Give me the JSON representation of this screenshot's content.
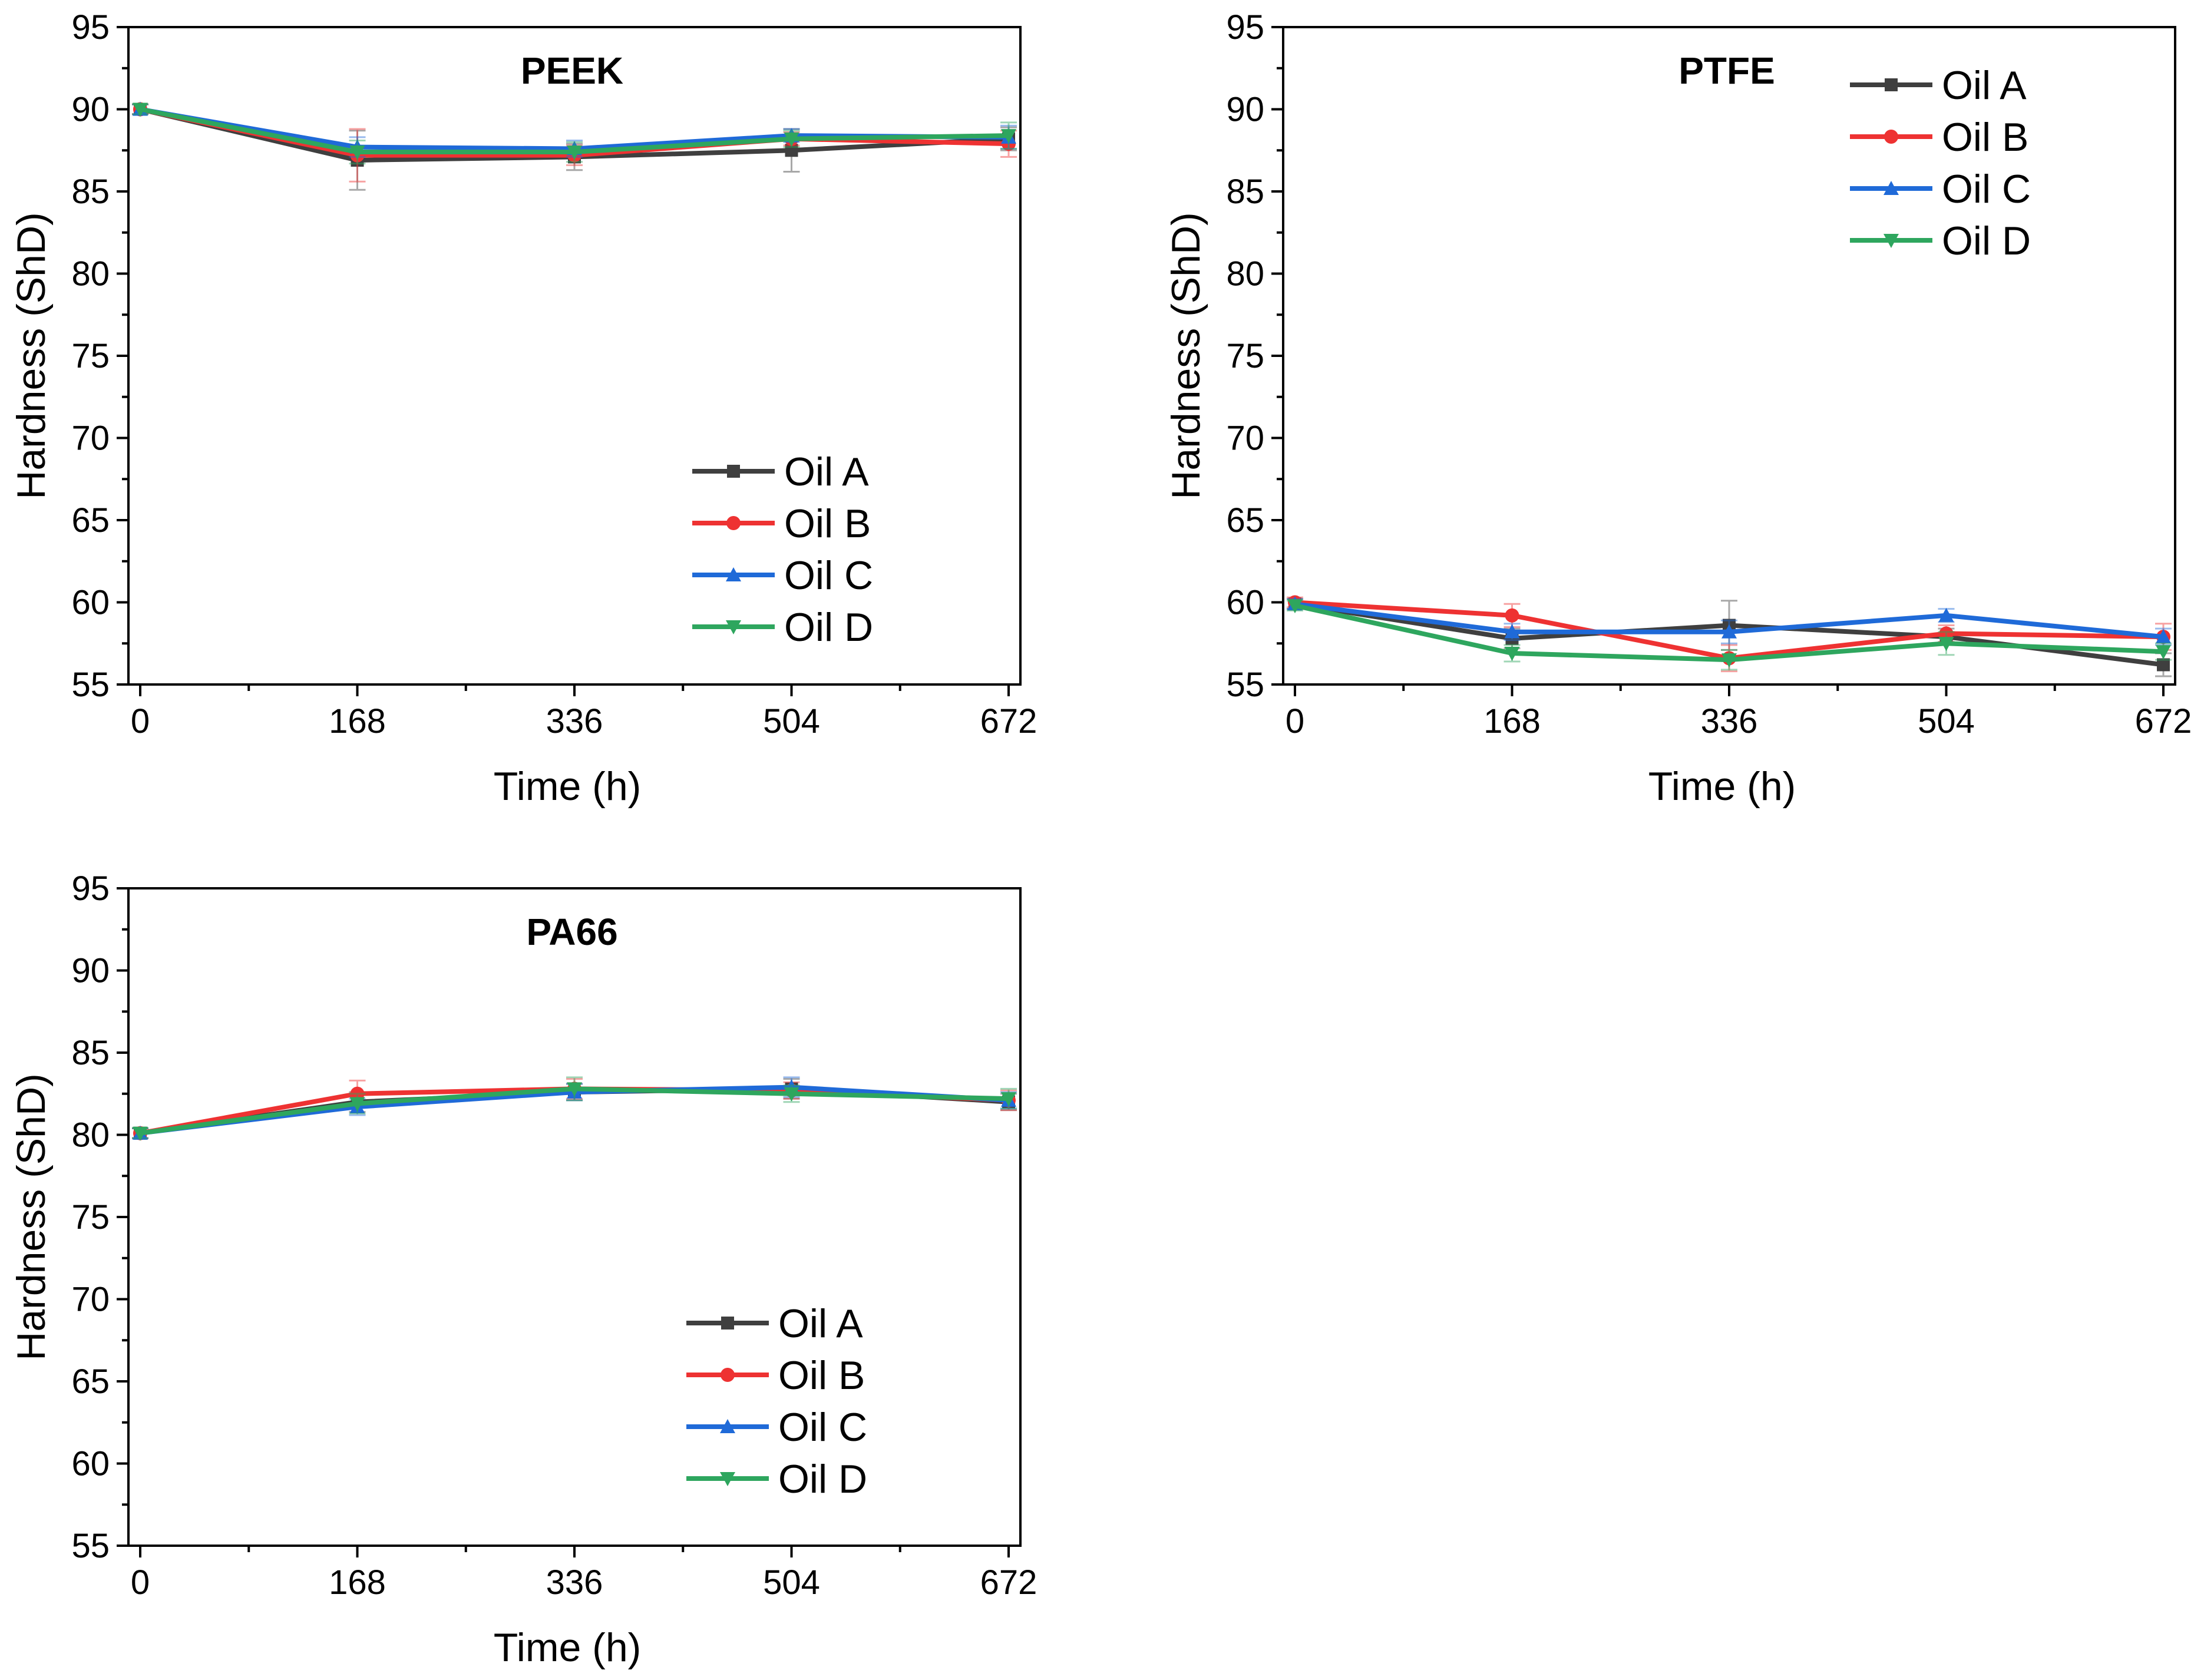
{
  "colors": {
    "Oil A": "#3f3f3f",
    "Oil B": "#ee3232",
    "Oil C": "#1f6ad8",
    "Oil D": "#2ea65e",
    "errorbar_alpha": 0.45
  },
  "chart_data": [
    {
      "id": "peek",
      "type": "line",
      "title": "PEEK",
      "xlabel": "Time (h)",
      "ylabel": "Hardness (ShD)",
      "x": [
        0,
        168,
        336,
        504,
        672
      ],
      "xticks": [
        "0",
        "168",
        "336",
        "504",
        "672"
      ],
      "ylim": [
        55,
        95
      ],
      "yticks": [
        "55",
        "60",
        "65",
        "70",
        "75",
        "80",
        "85",
        "90",
        "95"
      ],
      "grid": false,
      "legend": "bottom-right",
      "series": [
        {
          "name": "Oil A",
          "marker": "square",
          "values": [
            90.0,
            86.9,
            87.1,
            87.5,
            88.2
          ],
          "errors": [
            0.3,
            1.8,
            0.8,
            1.3,
            0.7
          ]
        },
        {
          "name": "Oil B",
          "marker": "circle",
          "values": [
            90.0,
            87.2,
            87.2,
            88.2,
            87.9
          ],
          "errors": [
            0.3,
            1.6,
            0.6,
            0.4,
            0.8
          ]
        },
        {
          "name": "Oil C",
          "marker": "triangle-up",
          "values": [
            90.0,
            87.7,
            87.6,
            88.4,
            88.3
          ],
          "errors": [
            0.3,
            0.6,
            0.5,
            0.4,
            0.7
          ]
        },
        {
          "name": "Oil D",
          "marker": "triangle-down",
          "values": [
            90.0,
            87.4,
            87.4,
            88.2,
            88.4
          ],
          "errors": [
            0.3,
            0.7,
            0.6,
            0.5,
            0.8
          ]
        }
      ]
    },
    {
      "id": "ptfe",
      "type": "line",
      "title": "PTFE",
      "xlabel": "Time (h)",
      "ylabel": "Hardness (ShD)",
      "x": [
        0,
        168,
        336,
        504,
        672
      ],
      "xticks": [
        "0",
        "168",
        "336",
        "504",
        "672"
      ],
      "ylim": [
        55,
        95
      ],
      "yticks": [
        "55",
        "60",
        "65",
        "70",
        "75",
        "80",
        "85",
        "90",
        "95"
      ],
      "grid": false,
      "legend": "top-right",
      "series": [
        {
          "name": "Oil A",
          "marker": "square",
          "values": [
            59.9,
            57.8,
            58.6,
            57.9,
            56.2
          ],
          "errors": [
            0.3,
            0.6,
            1.5,
            0.5,
            0.7
          ]
        },
        {
          "name": "Oil B",
          "marker": "circle",
          "values": [
            60.0,
            59.2,
            56.6,
            58.1,
            57.9
          ],
          "errors": [
            0.3,
            0.7,
            0.8,
            0.5,
            0.8
          ]
        },
        {
          "name": "Oil C",
          "marker": "triangle-up",
          "values": [
            59.9,
            58.2,
            58.2,
            59.2,
            57.9
          ],
          "errors": [
            0.3,
            0.5,
            0.7,
            0.4,
            0.5
          ]
        },
        {
          "name": "Oil D",
          "marker": "triangle-down",
          "values": [
            59.8,
            56.9,
            56.5,
            57.5,
            57.0
          ],
          "errors": [
            0.3,
            0.5,
            0.6,
            0.7,
            0.5
          ]
        }
      ]
    },
    {
      "id": "pa66",
      "type": "line",
      "title": "PA66",
      "xlabel": "Time (h)",
      "ylabel": "Hardness (ShD)",
      "x": [
        0,
        168,
        336,
        504,
        672
      ],
      "xticks": [
        "0",
        "168",
        "336",
        "504",
        "672"
      ],
      "ylim": [
        55,
        95
      ],
      "yticks": [
        "55",
        "60",
        "65",
        "70",
        "75",
        "80",
        "85",
        "90",
        "95"
      ],
      "grid": false,
      "legend": "bottom-right",
      "series": [
        {
          "name": "Oil A",
          "marker": "square",
          "values": [
            80.1,
            82.0,
            82.6,
            82.8,
            82.0
          ],
          "errors": [
            0.3,
            0.6,
            0.5,
            0.6,
            0.5
          ]
        },
        {
          "name": "Oil B",
          "marker": "circle",
          "values": [
            80.1,
            82.5,
            82.8,
            82.7,
            82.1
          ],
          "errors": [
            0.3,
            0.8,
            0.6,
            0.5,
            0.6
          ]
        },
        {
          "name": "Oil C",
          "marker": "triangle-up",
          "values": [
            80.1,
            81.7,
            82.6,
            82.9,
            82.1
          ],
          "errors": [
            0.3,
            0.5,
            0.5,
            0.6,
            0.5
          ]
        },
        {
          "name": "Oil D",
          "marker": "triangle-down",
          "values": [
            80.1,
            81.9,
            82.8,
            82.5,
            82.2
          ],
          "errors": [
            0.3,
            0.6,
            0.7,
            0.5,
            0.6
          ]
        }
      ]
    }
  ]
}
